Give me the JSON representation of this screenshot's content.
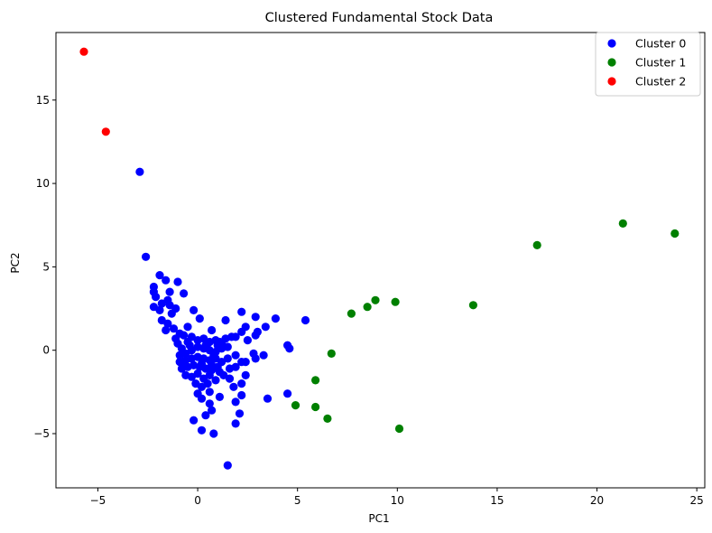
{
  "chart_data": {
    "type": "scatter",
    "title": "Clustered Fundamental Stock Data",
    "xlabel": "PC1",
    "ylabel": "PC2",
    "xlim": [
      -7.1,
      25.4
    ],
    "ylim": [
      -8.25,
      19.05
    ],
    "xticks": [
      -5,
      0,
      5,
      10,
      15,
      20,
      25
    ],
    "yticks": [
      -5,
      0,
      5,
      10,
      15
    ],
    "grid": false,
    "legend_position": "top-right",
    "series": [
      {
        "name": "Cluster 0",
        "color": "#0000ff",
        "points": [
          [
            -2.9,
            10.7
          ],
          [
            -2.6,
            5.6
          ],
          [
            -1.9,
            4.5
          ],
          [
            -1.6,
            4.2
          ],
          [
            -1.0,
            4.1
          ],
          [
            -1.4,
            3.5
          ],
          [
            -0.7,
            3.4
          ],
          [
            -2.2,
            3.8
          ],
          [
            -2.2,
            3.5
          ],
          [
            -2.1,
            3.2
          ],
          [
            -1.5,
            3.0
          ],
          [
            -1.4,
            2.7
          ],
          [
            -1.8,
            2.8
          ],
          [
            -1.9,
            2.4
          ],
          [
            -2.2,
            2.6
          ],
          [
            -1.1,
            2.5
          ],
          [
            -1.3,
            2.2
          ],
          [
            -0.2,
            2.4
          ],
          [
            0.1,
            1.9
          ],
          [
            -0.5,
            1.4
          ],
          [
            -1.8,
            1.8
          ],
          [
            -1.5,
            1.6
          ],
          [
            -1.2,
            1.3
          ],
          [
            -0.9,
            1.0
          ],
          [
            -1.6,
            1.2
          ],
          [
            -1.1,
            0.7
          ],
          [
            -0.7,
            0.9
          ],
          [
            -1.0,
            0.4
          ],
          [
            -0.8,
            0.1
          ],
          [
            -0.5,
            0.5
          ],
          [
            -0.3,
            0.8
          ],
          [
            0.0,
            0.6
          ],
          [
            0.3,
            0.7
          ],
          [
            0.6,
            0.5
          ],
          [
            0.9,
            0.6
          ],
          [
            1.2,
            0.4
          ],
          [
            -0.9,
            -0.3
          ],
          [
            -0.6,
            -0.2
          ],
          [
            -0.3,
            0.0
          ],
          [
            0.0,
            0.2
          ],
          [
            0.3,
            0.1
          ],
          [
            0.6,
            0.0
          ],
          [
            0.9,
            -0.1
          ],
          [
            1.2,
            0.1
          ],
          [
            1.5,
            0.2
          ],
          [
            -0.9,
            -0.7
          ],
          [
            -0.6,
            -0.6
          ],
          [
            -0.3,
            -0.5
          ],
          [
            0.0,
            -0.4
          ],
          [
            0.3,
            -0.5
          ],
          [
            0.6,
            -0.6
          ],
          [
            0.9,
            -0.5
          ],
          [
            1.2,
            -0.7
          ],
          [
            -0.8,
            -1.1
          ],
          [
            -0.5,
            -1.0
          ],
          [
            -0.2,
            -0.9
          ],
          [
            0.1,
            -1.0
          ],
          [
            0.4,
            -1.1
          ],
          [
            0.7,
            -1.2
          ],
          [
            1.0,
            -1.0
          ],
          [
            -0.6,
            -1.5
          ],
          [
            -0.3,
            -1.6
          ],
          [
            0.0,
            -1.4
          ],
          [
            0.3,
            -1.7
          ],
          [
            0.6,
            -1.5
          ],
          [
            0.9,
            -1.8
          ],
          [
            -0.1,
            -2.0
          ],
          [
            0.2,
            -2.2
          ],
          [
            0.5,
            -2.0
          ],
          [
            1.3,
            -1.5
          ],
          [
            0.8,
            -0.3
          ],
          [
            0.4,
            0.3
          ],
          [
            -0.4,
            0.3
          ],
          [
            -0.7,
            -0.9
          ],
          [
            0.2,
            -0.8
          ],
          [
            0.7,
            -0.9
          ],
          [
            0.5,
            0.4
          ],
          [
            1.0,
            0.3
          ],
          [
            1.7,
            0.8
          ],
          [
            1.4,
            0.7
          ],
          [
            2.2,
            2.3
          ],
          [
            1.4,
            1.8
          ],
          [
            0.7,
            1.2
          ],
          [
            2.2,
            1.1
          ],
          [
            2.4,
            1.4
          ],
          [
            2.9,
            2.0
          ],
          [
            3.4,
            1.4
          ],
          [
            3.9,
            1.9
          ],
          [
            5.4,
            1.8
          ],
          [
            2.9,
            0.9
          ],
          [
            1.9,
            0.8
          ],
          [
            1.1,
            0.5
          ],
          [
            2.5,
            0.6
          ],
          [
            3.0,
            1.1
          ],
          [
            1.3,
            0.2
          ],
          [
            1.9,
            -0.3
          ],
          [
            2.8,
            -0.2
          ],
          [
            3.3,
            -0.3
          ],
          [
            4.5,
            0.3
          ],
          [
            4.6,
            0.1
          ],
          [
            1.5,
            -0.5
          ],
          [
            2.2,
            -0.7
          ],
          [
            2.4,
            -0.7
          ],
          [
            1.6,
            -1.1
          ],
          [
            1.9,
            -1.0
          ],
          [
            2.9,
            -0.5
          ],
          [
            2.4,
            -1.5
          ],
          [
            1.1,
            -1.3
          ],
          [
            1.6,
            -1.7
          ],
          [
            1.8,
            -2.2
          ],
          [
            2.2,
            -2.0
          ],
          [
            0.6,
            -2.5
          ],
          [
            1.1,
            -2.8
          ],
          [
            1.9,
            -3.1
          ],
          [
            0.0,
            -2.6
          ],
          [
            0.2,
            -2.9
          ],
          [
            0.6,
            -3.2
          ],
          [
            0.4,
            -3.9
          ],
          [
            0.7,
            -3.6
          ],
          [
            2.2,
            -2.7
          ],
          [
            2.1,
            -3.8
          ],
          [
            3.5,
            -2.9
          ],
          [
            4.5,
            -2.6
          ],
          [
            -0.2,
            -4.2
          ],
          [
            1.9,
            -4.4
          ],
          [
            0.2,
            -4.8
          ],
          [
            0.8,
            -5.0
          ],
          [
            1.5,
            -6.9
          ]
        ]
      },
      {
        "name": "Cluster 1",
        "color": "#008000",
        "points": [
          [
            7.7,
            2.2
          ],
          [
            8.5,
            2.6
          ],
          [
            8.9,
            3.0
          ],
          [
            9.9,
            2.9
          ],
          [
            13.8,
            2.7
          ],
          [
            17.0,
            6.3
          ],
          [
            21.3,
            7.6
          ],
          [
            23.9,
            7.0
          ],
          [
            6.7,
            -0.2
          ],
          [
            5.9,
            -1.8
          ],
          [
            4.9,
            -3.3
          ],
          [
            5.9,
            -3.4
          ],
          [
            6.5,
            -4.1
          ],
          [
            10.1,
            -4.7
          ]
        ]
      },
      {
        "name": "Cluster 2",
        "color": "#ff0000",
        "points": [
          [
            -5.7,
            17.9
          ],
          [
            -4.6,
            13.1
          ]
        ]
      }
    ]
  }
}
